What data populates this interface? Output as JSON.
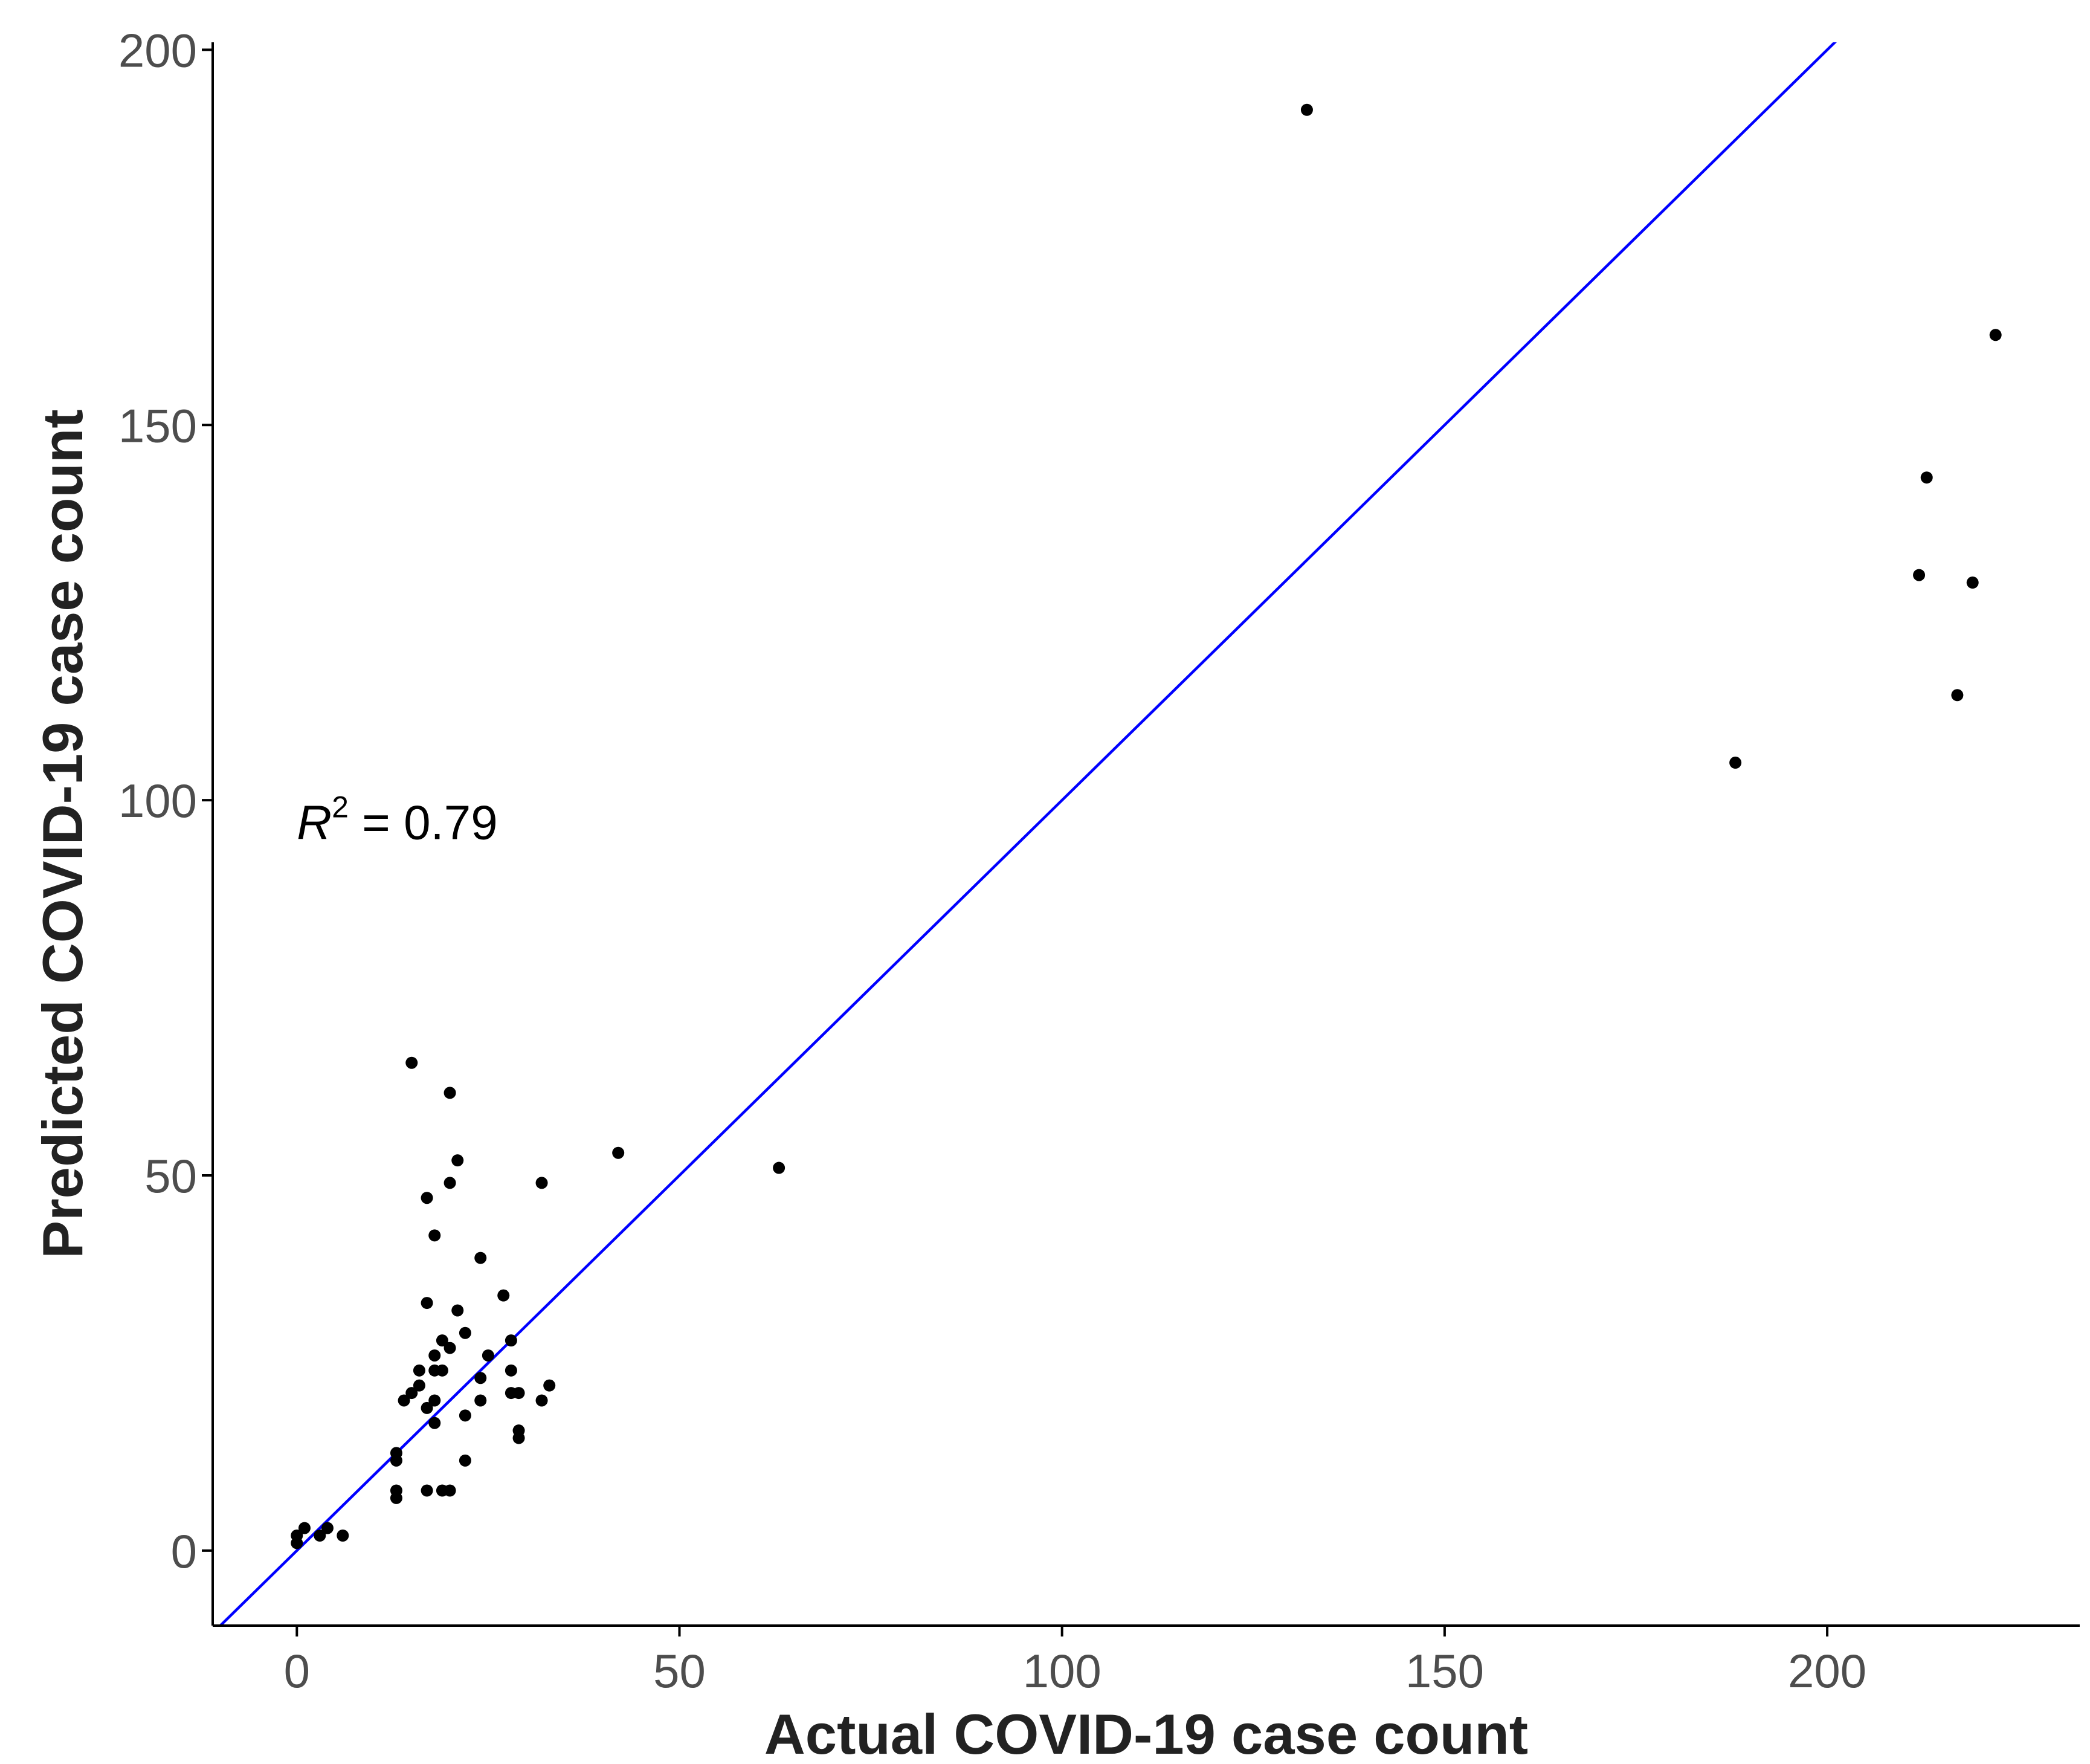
{
  "chart_data": {
    "type": "scatter",
    "xlabel": "Actual COVID-19 case count",
    "ylabel": "Predicted COVID-19 case count",
    "xlim": [
      -11,
      233
    ],
    "ylim": [
      -10,
      201
    ],
    "xticks": [
      0,
      50,
      100,
      150,
      200
    ],
    "yticks": [
      0,
      50,
      100,
      150,
      200
    ],
    "grid": false,
    "colors": {
      "points": "#000000",
      "fit_line": "#0000ff",
      "axis": "#000000"
    },
    "fit_line": {
      "intercept": 0,
      "slope": 1
    },
    "annotation": {
      "symbol": "R",
      "superscript": "2",
      "text": " = 0.79",
      "x": 0,
      "y": 97
    },
    "points": [
      {
        "x": 0,
        "y": 1
      },
      {
        "x": 0,
        "y": 2
      },
      {
        "x": 1,
        "y": 3
      },
      {
        "x": 3,
        "y": 2
      },
      {
        "x": 4,
        "y": 3
      },
      {
        "x": 6,
        "y": 2
      },
      {
        "x": 13,
        "y": 7
      },
      {
        "x": 13,
        "y": 8
      },
      {
        "x": 13,
        "y": 12
      },
      {
        "x": 13,
        "y": 13
      },
      {
        "x": 14,
        "y": 20
      },
      {
        "x": 15,
        "y": 21
      },
      {
        "x": 15,
        "y": 65
      },
      {
        "x": 16,
        "y": 22
      },
      {
        "x": 16,
        "y": 24
      },
      {
        "x": 17,
        "y": 8
      },
      {
        "x": 17,
        "y": 19
      },
      {
        "x": 17,
        "y": 33
      },
      {
        "x": 17,
        "y": 47
      },
      {
        "x": 18,
        "y": 17
      },
      {
        "x": 18,
        "y": 20
      },
      {
        "x": 18,
        "y": 24
      },
      {
        "x": 18,
        "y": 26
      },
      {
        "x": 18,
        "y": 42
      },
      {
        "x": 19,
        "y": 8
      },
      {
        "x": 19,
        "y": 24
      },
      {
        "x": 19,
        "y": 28
      },
      {
        "x": 20,
        "y": 8
      },
      {
        "x": 20,
        "y": 27
      },
      {
        "x": 20,
        "y": 49
      },
      {
        "x": 20,
        "y": 61
      },
      {
        "x": 21,
        "y": 32
      },
      {
        "x": 21,
        "y": 52
      },
      {
        "x": 22,
        "y": 12
      },
      {
        "x": 22,
        "y": 18
      },
      {
        "x": 22,
        "y": 29
      },
      {
        "x": 24,
        "y": 20
      },
      {
        "x": 24,
        "y": 23
      },
      {
        "x": 24,
        "y": 39
      },
      {
        "x": 25,
        "y": 26
      },
      {
        "x": 27,
        "y": 34
      },
      {
        "x": 28,
        "y": 21
      },
      {
        "x": 28,
        "y": 24
      },
      {
        "x": 28,
        "y": 28
      },
      {
        "x": 29,
        "y": 15
      },
      {
        "x": 29,
        "y": 16
      },
      {
        "x": 29,
        "y": 21
      },
      {
        "x": 32,
        "y": 20
      },
      {
        "x": 32,
        "y": 49
      },
      {
        "x": 33,
        "y": 22
      },
      {
        "x": 42,
        "y": 53
      },
      {
        "x": 63,
        "y": 51
      },
      {
        "x": 132,
        "y": 192
      },
      {
        "x": 188,
        "y": 105
      },
      {
        "x": 212,
        "y": 130
      },
      {
        "x": 213,
        "y": 143
      },
      {
        "x": 217,
        "y": 114
      },
      {
        "x": 219,
        "y": 129
      },
      {
        "x": 222,
        "y": 162
      }
    ]
  }
}
